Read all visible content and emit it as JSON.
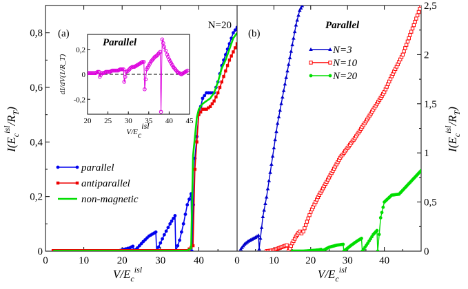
{
  "chart_data": [
    {
      "panel": "(a)",
      "type": "line",
      "label_N": "N=20",
      "xlabel": {
        "main": "V/E",
        "sub": "c",
        "sup": "isl"
      },
      "ylabel": {
        "pre": "I(E",
        "sub": "c",
        "sup": "isl",
        "post": "/R",
        "sub2": "T",
        "close": ")"
      },
      "xlim": [
        0,
        50
      ],
      "ylim": [
        0,
        0.9
      ],
      "xticks": [
        0,
        10,
        20,
        30,
        40
      ],
      "xtick_labels": [
        "0",
        "10",
        "20",
        "30",
        "40"
      ],
      "yticks": [
        0,
        0.2,
        0.4,
        0.6,
        0.8
      ],
      "ytick_labels": [
        "0",
        "0,2",
        "0,4",
        "0,6",
        "0,8"
      ],
      "legend_position": "lower-left",
      "series": [
        {
          "name": "parallel",
          "color": "#0000ee",
          "marker": "circle",
          "x": [
            2,
            5,
            10,
            15,
            19,
            20,
            22,
            22.8,
            23,
            24,
            25.5,
            27,
            28.8,
            29,
            30,
            31,
            32.5,
            33.8,
            34,
            35,
            36,
            37,
            38,
            38.2,
            39,
            40,
            41,
            42,
            43,
            44,
            45,
            46,
            47,
            48,
            49,
            50
          ],
          "y": [
            0,
            0,
            0,
            0,
            0,
            0.005,
            0.012,
            0.018,
            0,
            0.012,
            0.035,
            0.055,
            0.07,
            0,
            0.03,
            0.06,
            0.1,
            0.13,
            0,
            0.04,
            0.1,
            0.17,
            0.21,
            0,
            0.34,
            0.5,
            0.56,
            0.58,
            0.58,
            0.58,
            0.62,
            0.68,
            0.72,
            0.76,
            0.8,
            0.82
          ]
        },
        {
          "name": "antiparallel",
          "color": "#ee0000",
          "marker": "square",
          "x": [
            2,
            5,
            10,
            15,
            20,
            25,
            30,
            35,
            37,
            38.5,
            39,
            40,
            41,
            42,
            43,
            44,
            45,
            46,
            47,
            48,
            49,
            50
          ],
          "y": [
            0.002,
            0.002,
            0.002,
            0.002,
            0.002,
            0.002,
            0.002,
            0.002,
            0.002,
            0.02,
            0.3,
            0.5,
            0.52,
            0.52,
            0.53,
            0.55,
            0.58,
            0.62,
            0.66,
            0.7,
            0.73,
            0.76
          ]
        },
        {
          "name": "non-magnetic",
          "color": "#00dd00",
          "marker": "none",
          "x": [
            2,
            10,
            20,
            30,
            37,
            38,
            38.5,
            39.5,
            40,
            41,
            42,
            43,
            44,
            45,
            46,
            47,
            48,
            49,
            50
          ],
          "y": [
            0.001,
            0.001,
            0.001,
            0.001,
            0.002,
            0.01,
            0.35,
            0.49,
            0.52,
            0.54,
            0.55,
            0.56,
            0.58,
            0.62,
            0.67,
            0.7,
            0.74,
            0.78,
            0.8
          ]
        }
      ],
      "inset": {
        "title": "Parallel",
        "ylabel": "dI/dV(1/R_T)",
        "xlabel": {
          "main": "V/E",
          "sub": "c",
          "sup": "isl"
        },
        "xlim": [
          20,
          45
        ],
        "ylim": [
          -0.32,
          0.32
        ],
        "xticks": [
          20,
          25,
          30,
          35,
          40,
          45
        ],
        "xtick_labels": [
          "20",
          "25",
          "30",
          "35",
          "40",
          "45"
        ],
        "yticks": [
          -0.2,
          0,
          0.2
        ],
        "ytick_labels": [
          "-0,2",
          "0",
          "0,2"
        ],
        "series": [
          {
            "name": "dI/dV",
            "color": "#dd00dd",
            "marker": "open-circle",
            "x": [
              20,
              20.5,
              21,
              21.5,
              22,
              22.5,
              22.8,
              23,
              23.5,
              24,
              24.5,
              25,
              25.5,
              26,
              26.5,
              27,
              27.5,
              28,
              28.5,
              28.8,
              29,
              29.5,
              30,
              30.5,
              31,
              31.5,
              32,
              32.5,
              33,
              33.5,
              33.8,
              34,
              34.5,
              35,
              35.5,
              36,
              36.5,
              37,
              37.5,
              37.8,
              38,
              38.3,
              38.8,
              39.5,
              40,
              40.5,
              41,
              41.5,
              42,
              42.5,
              43,
              43.5,
              44,
              44.5
            ],
            "y": [
              0.01,
              0.01,
              0.01,
              0.01,
              0.01,
              0.02,
              0.02,
              -0.02,
              0.01,
              0.01,
              0.02,
              0.02,
              0.02,
              0.03,
              0.03,
              0.03,
              0.03,
              0.04,
              0.04,
              0.04,
              -0.06,
              0.02,
              0.03,
              0.05,
              0.06,
              0.06,
              0.07,
              0.08,
              0.09,
              0.1,
              0.1,
              -0.12,
              0.04,
              0.07,
              0.1,
              0.12,
              0.14,
              0.15,
              0.17,
              0.18,
              -0.3,
              0.28,
              0.22,
              0.16,
              0.12,
              0.09,
              0.06,
              0.04,
              0.02,
              0.01,
              0.0,
              0.01,
              0.02,
              0.03
            ]
          }
        ]
      }
    },
    {
      "panel": "(b)",
      "type": "line",
      "title": "Parallel",
      "xlabel": {
        "main": "V/E",
        "sub": "c",
        "sup": "isl"
      },
      "ylabel": {
        "pre": "I(E",
        "sub": "c",
        "sup": "isl",
        "post": "/R",
        "sub2": "T",
        "close": ")"
      },
      "xlim": [
        0,
        50
      ],
      "ylim": [
        0,
        2.5
      ],
      "xticks": [
        0,
        10,
        20,
        30,
        40
      ],
      "xtick_labels": [
        "0",
        "10",
        "20",
        "30",
        "40"
      ],
      "yticks": [
        0,
        0.5,
        1,
        1.5,
        2,
        2.5
      ],
      "ytick_labels": [
        "0",
        "0,5",
        "1",
        "1,5",
        "2",
        "2,5"
      ],
      "legend_position": "top-right",
      "series": [
        {
          "name": "N=3",
          "color": "#0000cc",
          "marker": "triangle",
          "x": [
            1,
            2,
            3,
            4,
            5,
            5.8,
            6,
            7,
            8,
            9,
            10,
            11,
            12,
            13,
            14,
            15,
            16,
            17,
            18
          ],
          "y": [
            0.02,
            0.07,
            0.1,
            0.12,
            0.14,
            0.16,
            0.02,
            0.35,
            0.55,
            0.8,
            1.05,
            1.3,
            1.5,
            1.7,
            1.9,
            2.1,
            2.3,
            2.45,
            2.52
          ]
        },
        {
          "name": "N=10",
          "color": "#ff0000",
          "marker": "open-square",
          "x": [
            8,
            10,
            12,
            13.5,
            14,
            15,
            16,
            17,
            17.5,
            18,
            20,
            22,
            25,
            28,
            30,
            32,
            35,
            38,
            40,
            42,
            45,
            48,
            50
          ],
          "y": [
            0,
            0.01,
            0.04,
            0.06,
            0,
            0.08,
            0.15,
            0.2,
            0.18,
            0.2,
            0.4,
            0.55,
            0.75,
            0.95,
            1.05,
            1.15,
            1.32,
            1.5,
            1.62,
            1.78,
            2.0,
            2.3,
            2.5
          ]
        },
        {
          "name": "N=20",
          "color": "#00dd00",
          "marker": "circle",
          "x": [
            15,
            18,
            20,
            22,
            22.8,
            23,
            25,
            27,
            28.8,
            29,
            31,
            32.5,
            33.8,
            34,
            35.5,
            37,
            38,
            38.2,
            39,
            40,
            42,
            44,
            46,
            48,
            50
          ],
          "y": [
            0,
            0,
            0.005,
            0.012,
            0.018,
            0,
            0.04,
            0.06,
            0.07,
            0,
            0.06,
            0.1,
            0.13,
            0,
            0.08,
            0.17,
            0.21,
            0,
            0.34,
            0.5,
            0.57,
            0.58,
            0.66,
            0.74,
            0.82
          ]
        }
      ]
    }
  ]
}
